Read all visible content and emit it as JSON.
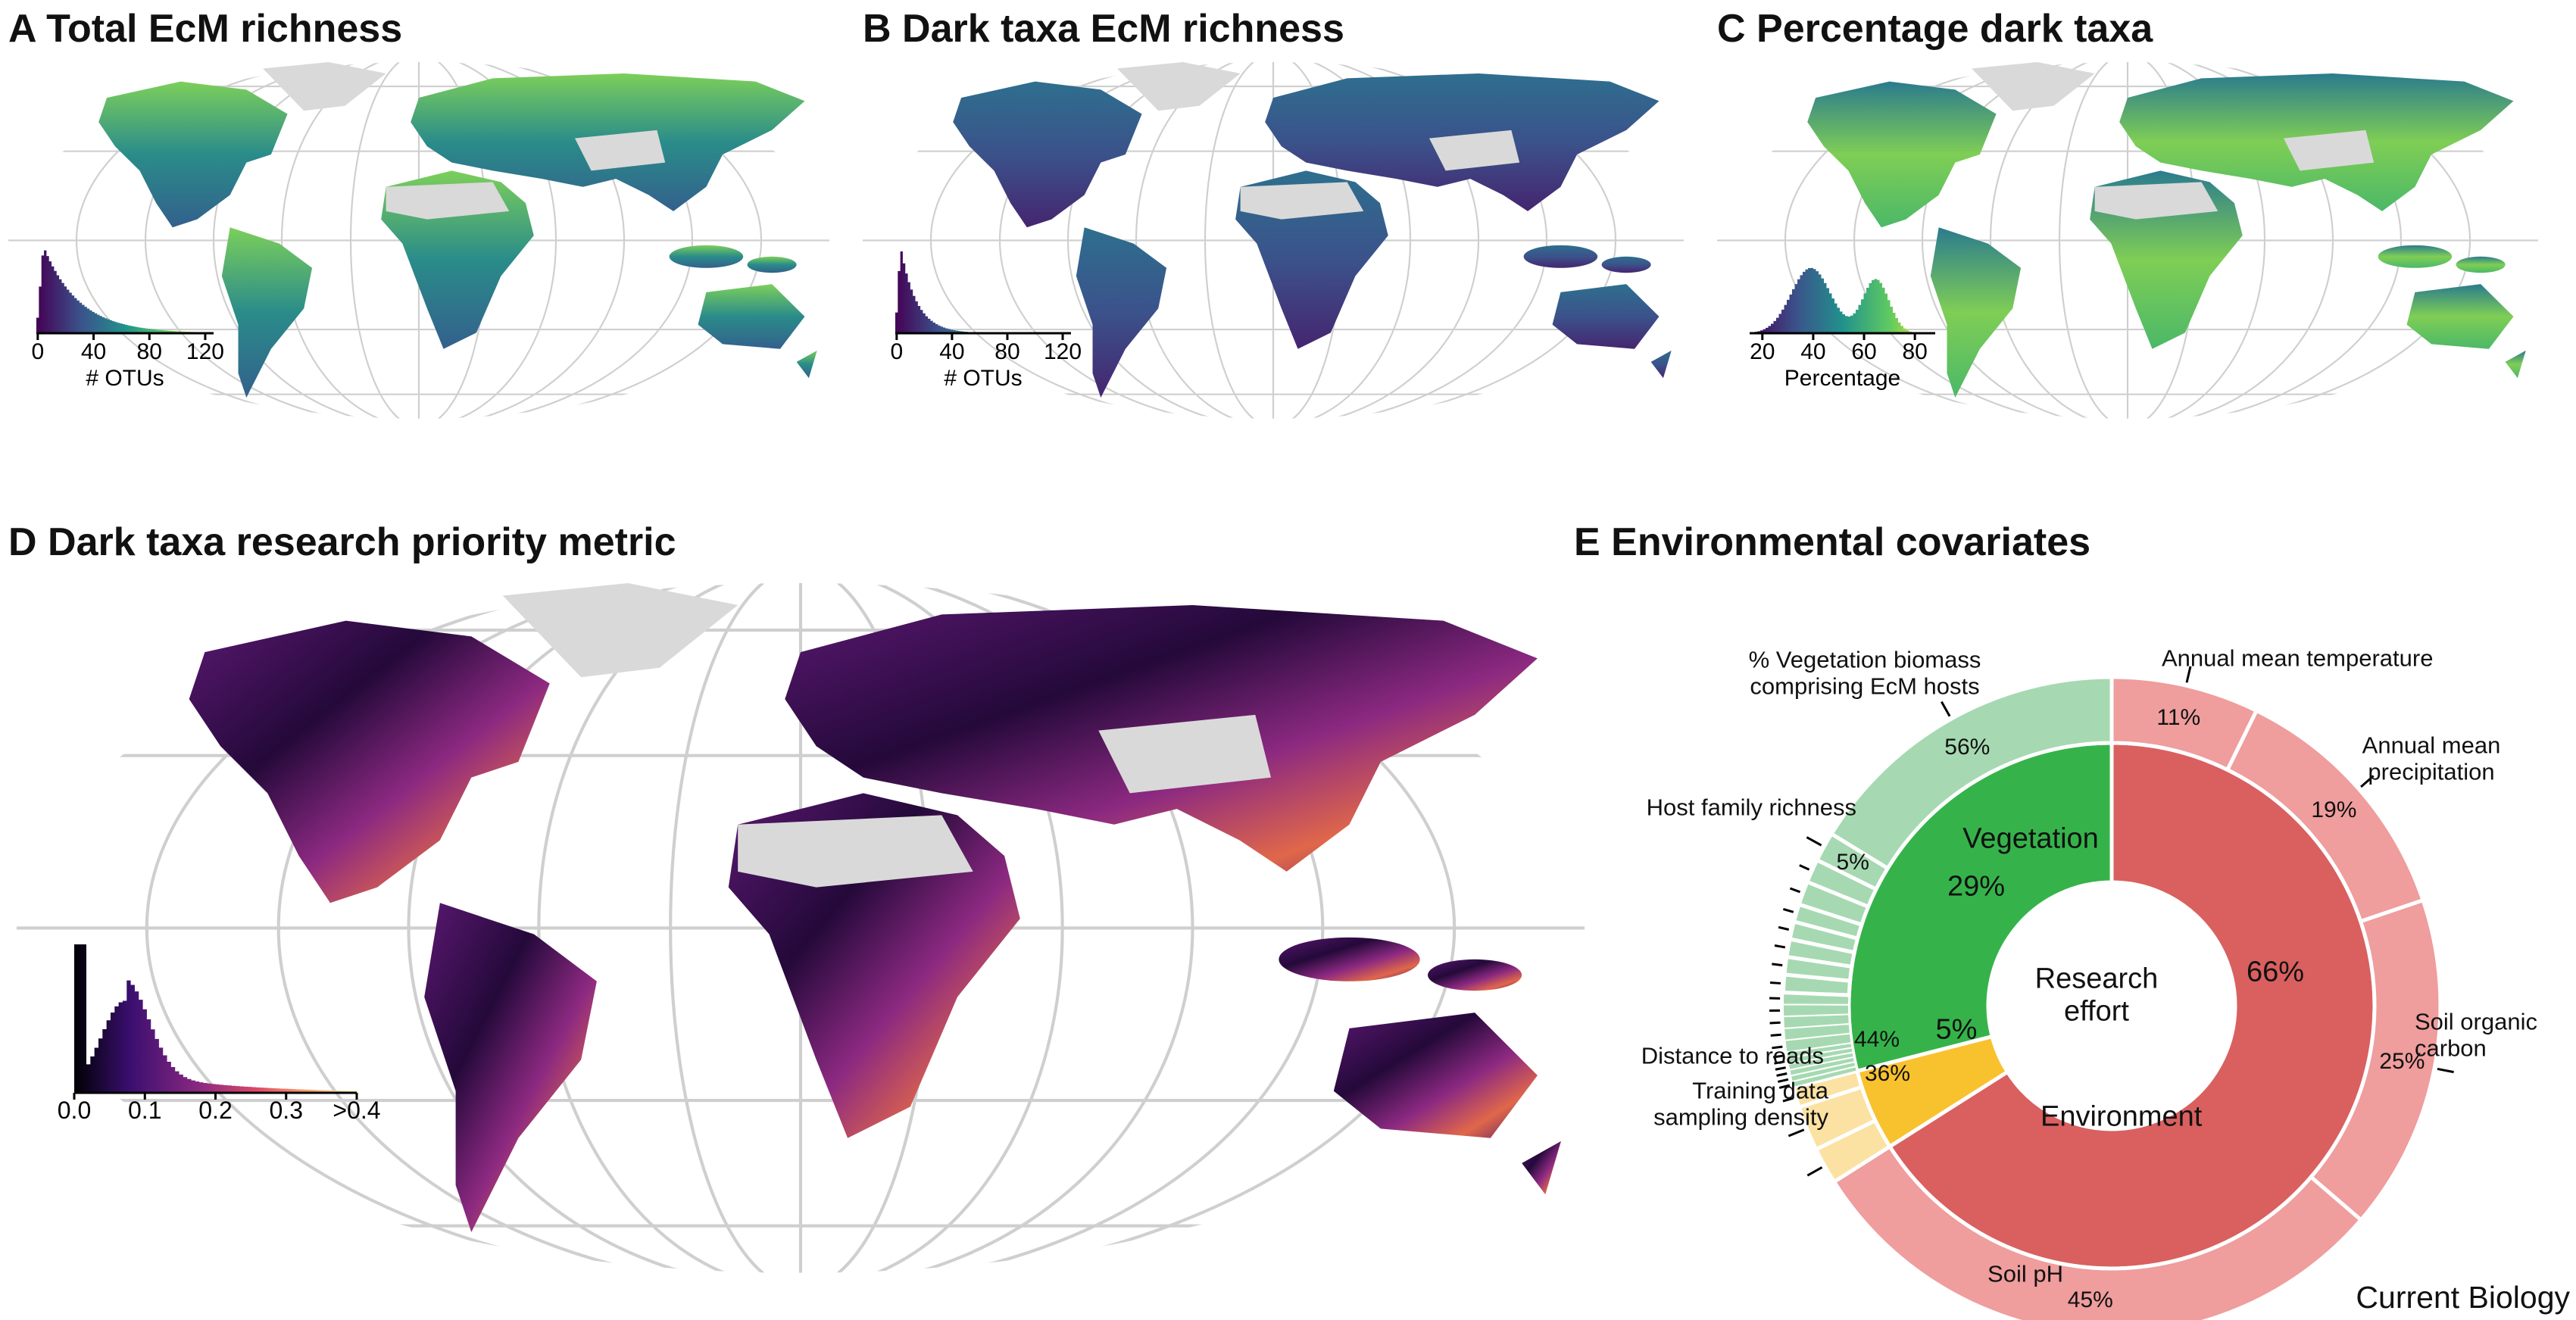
{
  "panels": [
    {
      "label": "A",
      "title": "Total EcM richness",
      "legend": {
        "lim": [
          -1,
          126
        ],
        "ticks": [
          0,
          40,
          80,
          120
        ],
        "label": "# OTUs"
      }
    },
    {
      "label": "B",
      "title": "Dark taxa EcM richness",
      "legend": {
        "lim": [
          -1,
          126
        ],
        "ticks": [
          0,
          40,
          80,
          120
        ],
        "label": "# OTUs"
      }
    },
    {
      "label": "C",
      "title": "Percentage dark taxa",
      "legend": {
        "lim": [
          15,
          88
        ],
        "ticks": [
          20,
          40,
          60,
          80
        ],
        "label": "Percentage"
      }
    },
    {
      "label": "D",
      "title": "Dark taxa research priority metric",
      "legend": {
        "lim": [
          0,
          0.4
        ],
        "ticks": [
          {
            "value": 0,
            "label": "0.0"
          },
          0.1,
          0.2,
          0.3,
          {
            "value": 0.4,
            "label": ">0.4"
          }
        ]
      }
    }
  ],
  "chart_data": {
    "type": "donut",
    "label": "E",
    "title": "Environmental covariates",
    "series": [
      {
        "name": "Environment",
        "color": "#d9605f",
        "value": 66,
        "value_label": "66%",
        "parts": {
          "categories": [
            "Annual mean temperature",
            "Annual mean precipitation",
            "Soil organic carbon",
            "Soil pH"
          ],
          "values": [
            11,
            19,
            25,
            45
          ],
          "value_labels": [
            "11%",
            "19%",
            "25%",
            "45%"
          ],
          "color": "#ef9d9d"
        }
      },
      {
        "name": "Research effort",
        "color": "#f8c22f",
        "value": 5,
        "value_label": "5%",
        "parts": {
          "categories": [
            "Training data sampling density",
            "Distance to roads",
            null
          ],
          "values": [
            36,
            44,
            20
          ],
          "value_labels": [
            "36%",
            "44%",
            null
          ],
          "color": "#fbe2a2"
        }
      },
      {
        "name": "Vegetation",
        "color": "#35b34a",
        "value": 29,
        "value_label": "29%",
        "parts": {
          "categories": [
            null,
            null,
            null,
            null,
            null,
            null,
            null,
            null,
            null,
            null,
            null,
            null,
            null,
            null,
            null,
            null,
            null,
            null,
            "Host family richness",
            "% Vegetation biomass comprising EcM hosts"
          ],
          "values": [
            1,
            1,
            1,
            1,
            1,
            1,
            2,
            2,
            2,
            2,
            2,
            3,
            3,
            3,
            3,
            3,
            4,
            4,
            5,
            56
          ],
          "value_labels": [
            null,
            null,
            null,
            null,
            null,
            null,
            null,
            null,
            null,
            null,
            null,
            null,
            null,
            null,
            null,
            null,
            null,
            null,
            "5%",
            "56%"
          ],
          "color": "#a6d9b1"
        }
      }
    ]
  },
  "footer": "Current Biology"
}
